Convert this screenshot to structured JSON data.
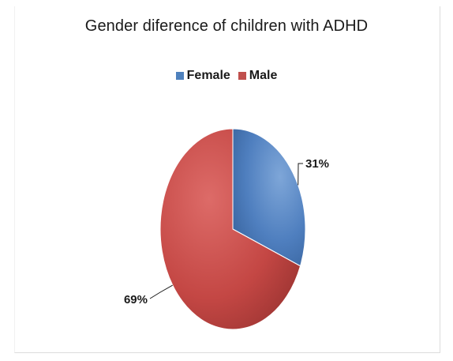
{
  "chart_data": {
    "type": "pie",
    "title": "Gender diference of children with ADHD",
    "categories": [
      "Female",
      "Male"
    ],
    "values": [
      31,
      69
    ],
    "labels": [
      "31%",
      "69%"
    ],
    "colors": [
      "#4e81bd",
      "#c0504d"
    ],
    "legend_position": "top"
  }
}
